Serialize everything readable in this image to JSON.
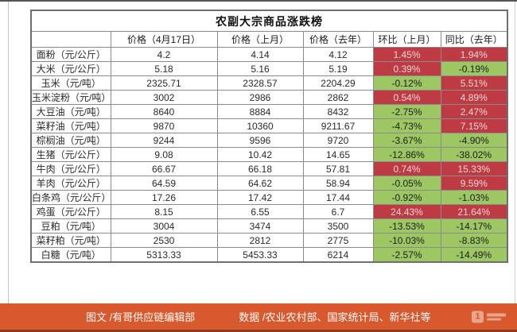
{
  "chart_data": {
    "type": "table",
    "title": "农副大宗商品涨跌榜",
    "columns": [
      "",
      "价格（4月17日）",
      "价格（上月）",
      "价格（去年）",
      "环比（上月）",
      "同比（去年）"
    ],
    "rows": [
      [
        "面粉（元/公斤）",
        "4.2",
        "4.14",
        "4.12",
        "1.45%",
        "1.94%"
      ],
      [
        "大米（元/公斤）",
        "5.18",
        "5.16",
        "5.19",
        "0.39%",
        "-0.19%"
      ],
      [
        "玉米（元/吨）",
        "2325.71",
        "2328.57",
        "2204.29",
        "-0.12%",
        "5.51%"
      ],
      [
        "玉米淀粉（元/吨）",
        "3002",
        "2986",
        "2862",
        "0.54%",
        "4.89%"
      ],
      [
        "大豆油（元/吨）",
        "8640",
        "8884",
        "8432",
        "-2.75%",
        "2.47%"
      ],
      [
        "菜籽油（元/吨）",
        "9870",
        "10360",
        "9211.67",
        "-4.73%",
        "7.15%"
      ],
      [
        "棕榈油（元/吨）",
        "9244",
        "9596",
        "9720",
        "-3.67%",
        "-4.90%"
      ],
      [
        "生猪（元/公斤）",
        "9.08",
        "10.42",
        "14.65",
        "-12.86%",
        "-38.02%"
      ],
      [
        "牛肉（元/公斤）",
        "66.67",
        "66.18",
        "57.81",
        "0.74%",
        "15.33%"
      ],
      [
        "羊肉（元/公斤）",
        "64.59",
        "64.62",
        "58.94",
        "-0.05%",
        "9.59%"
      ],
      [
        "白条鸡（元/公斤）",
        "17.26",
        "17.42",
        "17.44",
        "-0.92%",
        "-1.03%"
      ],
      [
        "鸡蛋（元/公斤）",
        "8.15",
        "6.55",
        "6.7",
        "24.43%",
        "21.64%"
      ],
      [
        "豆粕（元/吨）",
        "3004",
        "3474",
        "3500",
        "-13.53%",
        "-14.17%"
      ],
      [
        "菜籽粕（元/吨）",
        "2530",
        "2812",
        "2775",
        "-10.03%",
        "-8.83%"
      ],
      [
        "白糖（元/吨）",
        "5313.33",
        "5453.33",
        "6214",
        "-2.57%",
        "-14.49%"
      ]
    ],
    "legend_note": "red background = increase, green background = decrease"
  },
  "footer": {
    "credits": "图文 /有哥供应链编辑部",
    "sources": "数据 /农业农村部、国家统计局、新华社等"
  },
  "icons": {
    "watermark": "1"
  },
  "colors": {
    "increase_bg": "#bf3b43",
    "increase_text": "#eed7d7",
    "decrease_bg": "#9cc763",
    "decrease_text": "#1d1d1d",
    "footer_bg": "#d8592d",
    "footer_border": "#8f3a1c",
    "table_border": "#8b8b8b"
  }
}
